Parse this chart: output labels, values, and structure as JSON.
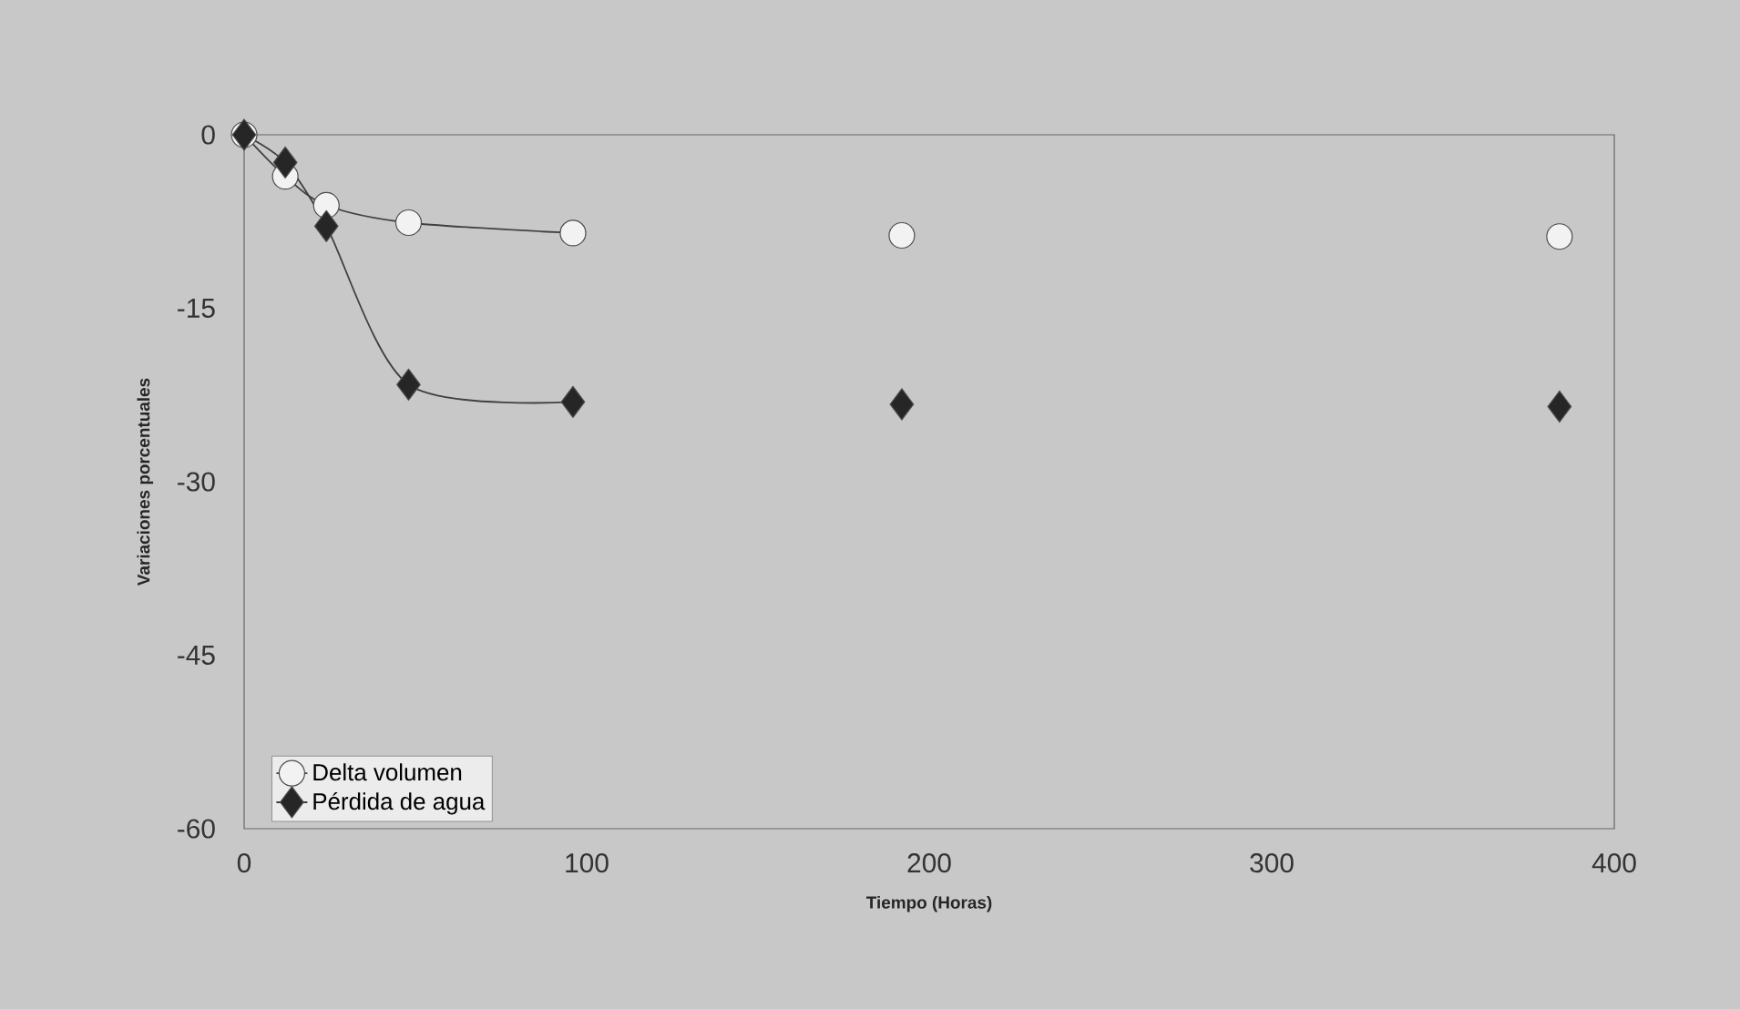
{
  "chart_data": {
    "type": "line",
    "xlabel": "Tiempo (Horas)",
    "ylabel": "Variaciones porcentuales",
    "xlim": [
      0,
      400
    ],
    "xticks": [
      0,
      100,
      200,
      300,
      400
    ],
    "ylim": [
      -60,
      0
    ],
    "yticks": [
      -60,
      -45,
      -30,
      -15,
      0
    ],
    "grid": false,
    "legend": "bottom left",
    "line_style": "solid",
    "series": [
      {
        "name": "Delta volumen",
        "marker": "circle",
        "color": "#f2f2f2",
        "x": [
          0,
          12,
          24,
          48,
          96
        ],
        "values": [
          0,
          -3.6,
          -6.1,
          -7.6,
          -8.5
        ]
      },
      {
        "name": "Pérdida de agua",
        "marker": "diamond",
        "color": "#262626",
        "x": [
          0,
          12,
          24,
          48,
          96
        ],
        "values": [
          0,
          -2.4,
          -7.9,
          -21.6,
          -23.1
        ]
      },
      {
        "type": "scatter",
        "marker": "circle",
        "color": "#f2f2f2",
        "x": [
          192,
          384
        ],
        "values": [
          -8.7,
          -8.8
        ]
      },
      {
        "type": "scatter",
        "marker": "diamond",
        "color": "#262626",
        "x": [
          192,
          384
        ],
        "values": [
          -23.3,
          -23.5
        ]
      }
    ]
  }
}
